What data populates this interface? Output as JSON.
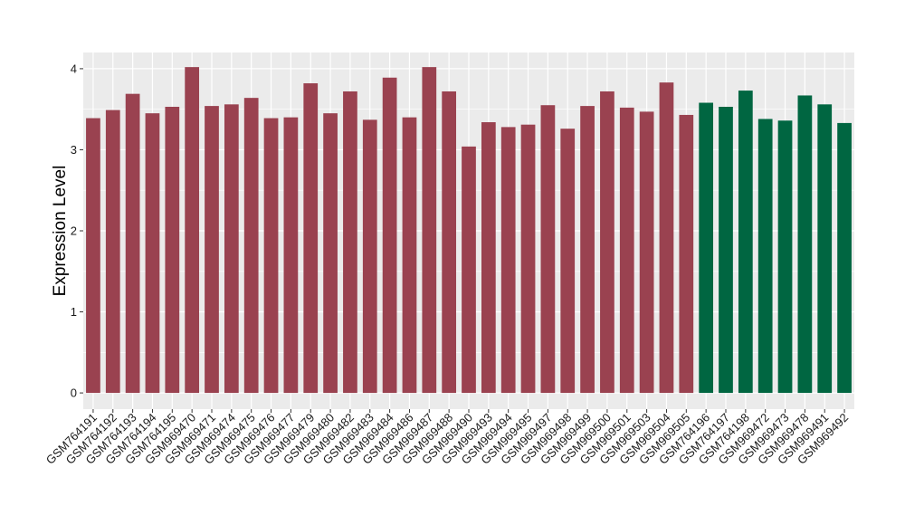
{
  "chart_data": {
    "type": "bar",
    "ylabel": "Expression Level",
    "xlabel": "",
    "ylim": [
      -0.2,
      4.2
    ],
    "yticks": [
      0,
      1,
      2,
      3,
      4
    ],
    "grid": true,
    "colors": {
      "group_a": "#9a4250",
      "group_b": "#006641",
      "panel": "#ebebeb",
      "grid": "#ffffff"
    },
    "categories": [
      "GSM764191",
      "GSM764192",
      "GSM764193",
      "GSM764194",
      "GSM764195",
      "GSM969470",
      "GSM969471",
      "GSM969474",
      "GSM969475",
      "GSM969476",
      "GSM969477",
      "GSM969479",
      "GSM969480",
      "GSM969482",
      "GSM969483",
      "GSM969484",
      "GSM969486",
      "GSM969487",
      "GSM969488",
      "GSM969490",
      "GSM969493",
      "GSM969494",
      "GSM969495",
      "GSM969497",
      "GSM969498",
      "GSM969499",
      "GSM969500",
      "GSM969501",
      "GSM969503",
      "GSM969504",
      "GSM969505",
      "GSM764196",
      "GSM764197",
      "GSM764198",
      "GSM969472",
      "GSM969473",
      "GSM969478",
      "GSM969491",
      "GSM969492"
    ],
    "values": [
      3.39,
      3.49,
      3.69,
      3.45,
      3.53,
      4.02,
      3.54,
      3.56,
      3.64,
      3.39,
      3.4,
      3.82,
      3.45,
      3.72,
      3.37,
      3.89,
      3.4,
      4.02,
      3.72,
      3.04,
      3.34,
      3.28,
      3.31,
      3.55,
      3.26,
      3.54,
      3.72,
      3.52,
      3.47,
      3.83,
      3.43,
      3.58,
      3.53,
      3.73,
      3.38,
      3.36,
      3.67,
      3.56,
      3.33
    ],
    "groups": [
      "a",
      "a",
      "a",
      "a",
      "a",
      "a",
      "a",
      "a",
      "a",
      "a",
      "a",
      "a",
      "a",
      "a",
      "a",
      "a",
      "a",
      "a",
      "a",
      "a",
      "a",
      "a",
      "a",
      "a",
      "a",
      "a",
      "a",
      "a",
      "a",
      "a",
      "a",
      "b",
      "b",
      "b",
      "b",
      "b",
      "b",
      "b",
      "b"
    ]
  }
}
